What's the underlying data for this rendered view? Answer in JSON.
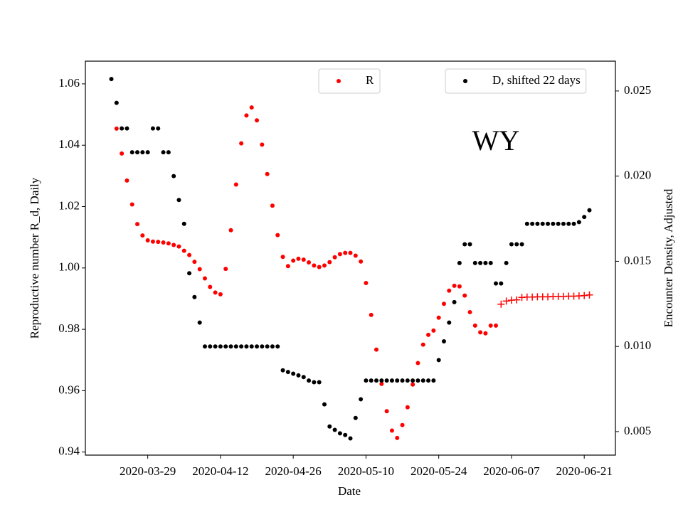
{
  "chart_data": {
    "type": "scatter",
    "x": [
      "2020-03-22",
      "2020-03-23",
      "2020-03-24",
      "2020-03-25",
      "2020-03-26",
      "2020-03-27",
      "2020-03-28",
      "2020-03-29",
      "2020-03-30",
      "2020-03-31",
      "2020-04-01",
      "2020-04-02",
      "2020-04-03",
      "2020-04-04",
      "2020-04-05",
      "2020-04-06",
      "2020-04-07",
      "2020-04-08",
      "2020-04-09",
      "2020-04-10",
      "2020-04-11",
      "2020-04-12",
      "2020-04-13",
      "2020-04-14",
      "2020-04-15",
      "2020-04-16",
      "2020-04-17",
      "2020-04-18",
      "2020-04-19",
      "2020-04-20",
      "2020-04-21",
      "2020-04-22",
      "2020-04-23",
      "2020-04-24",
      "2020-04-25",
      "2020-04-26",
      "2020-04-27",
      "2020-04-28",
      "2020-04-29",
      "2020-04-30",
      "2020-05-01",
      "2020-05-02",
      "2020-05-03",
      "2020-05-04",
      "2020-05-05",
      "2020-05-06",
      "2020-05-07",
      "2020-05-08",
      "2020-05-09",
      "2020-05-10",
      "2020-05-11",
      "2020-05-12",
      "2020-05-13",
      "2020-05-14",
      "2020-05-15",
      "2020-05-16",
      "2020-05-17",
      "2020-05-18",
      "2020-05-19",
      "2020-05-20",
      "2020-05-21",
      "2020-05-22",
      "2020-05-23",
      "2020-05-24",
      "2020-05-25",
      "2020-05-26",
      "2020-05-27",
      "2020-05-28",
      "2020-05-29",
      "2020-05-30",
      "2020-05-31",
      "2020-06-01",
      "2020-06-02",
      "2020-06-03",
      "2020-06-04",
      "2020-06-05",
      "2020-06-06",
      "2020-06-07",
      "2020-06-08",
      "2020-06-09",
      "2020-06-10",
      "2020-06-11",
      "2020-06-12",
      "2020-06-13",
      "2020-06-14",
      "2020-06-15",
      "2020-06-16",
      "2020-06-17",
      "2020-06-18",
      "2020-06-19",
      "2020-06-20",
      "2020-06-21",
      "2020-06-22"
    ],
    "series": [
      {
        "name": "R",
        "color": "#ff0000",
        "marker": "o",
        "legend": "upper center",
        "values": [
          null,
          1.0454,
          1.0373,
          1.0285,
          1.0207,
          1.0143,
          1.0106,
          1.009,
          1.0086,
          1.0085,
          1.0083,
          1.008,
          1.0075,
          1.007,
          1.0056,
          1.0042,
          1.002,
          0.9996,
          0.9966,
          0.9938,
          0.992,
          0.9914,
          0.9997,
          1.0123,
          1.0272,
          1.0406,
          1.0497,
          1.0523,
          1.0481,
          1.0402,
          1.0306,
          1.0203,
          1.0107,
          1.0036,
          1.0006,
          1.0024,
          1.003,
          1.0027,
          1.0018,
          1.0008,
          1.0003,
          1.0008,
          1.0019,
          1.0035,
          1.0045,
          1.0049,
          1.0049,
          1.004,
          1.0021,
          0.9951,
          0.9847,
          0.9734,
          0.9622,
          0.9533,
          0.947,
          0.9446,
          0.9488,
          0.9546,
          0.962,
          0.969,
          0.975,
          0.9782,
          0.9796,
          0.9838,
          0.9883,
          0.9926,
          0.9942,
          0.994,
          0.991,
          0.9856,
          0.9812,
          0.979,
          0.9787,
          0.9812,
          0.9812,
          null,
          null,
          null,
          null,
          null,
          null,
          null,
          null,
          null,
          null,
          null,
          null,
          null,
          null,
          null,
          null,
          null,
          null
        ]
      },
      {
        "color": "#ff0000",
        "marker": "+",
        "values": [
          null,
          null,
          null,
          null,
          null,
          null,
          null,
          null,
          null,
          null,
          null,
          null,
          null,
          null,
          null,
          null,
          null,
          null,
          null,
          null,
          null,
          null,
          null,
          null,
          null,
          null,
          null,
          null,
          null,
          null,
          null,
          null,
          null,
          null,
          null,
          null,
          null,
          null,
          null,
          null,
          null,
          null,
          null,
          null,
          null,
          null,
          null,
          null,
          null,
          null,
          null,
          null,
          null,
          null,
          null,
          null,
          null,
          null,
          null,
          null,
          null,
          null,
          null,
          null,
          null,
          null,
          null,
          null,
          null,
          null,
          null,
          null,
          null,
          null,
          null,
          0.9882,
          0.9892,
          0.9895,
          0.9896,
          0.9904,
          0.9905,
          0.9905,
          0.9906,
          0.9906,
          0.9906,
          0.9907,
          0.9907,
          0.9907,
          0.9908,
          0.9908,
          0.9909,
          0.991,
          0.9912
        ]
      },
      {
        "name": "D, shifted 22 days",
        "color": "#000000",
        "marker": "o",
        "axis": "y2",
        "legend": "upper right",
        "values": [
          0.0257,
          0.0243,
          0.0228,
          0.0228,
          0.0214,
          0.0214,
          0.0214,
          0.0214,
          0.0228,
          0.0228,
          0.0214,
          0.0214,
          0.02,
          0.0186,
          0.0172,
          0.0143,
          0.0129,
          0.0114,
          0.01,
          0.01,
          0.01,
          0.01,
          0.01,
          0.01,
          0.01,
          0.01,
          0.01,
          0.01,
          0.01,
          0.01,
          0.01,
          0.01,
          0.01,
          0.0086,
          0.0085,
          0.0084,
          0.0083,
          0.0082,
          0.008,
          0.0079,
          0.0079,
          0.0066,
          0.0053,
          0.0051,
          0.0049,
          0.0048,
          0.0046,
          0.0058,
          0.0069,
          0.008,
          0.008,
          0.008,
          0.008,
          0.008,
          0.008,
          0.008,
          0.008,
          0.008,
          0.008,
          0.008,
          0.008,
          0.008,
          0.008,
          0.0092,
          0.0103,
          0.0114,
          0.0126,
          0.0149,
          0.016,
          0.016,
          0.0149,
          0.0149,
          0.0149,
          0.0149,
          0.0137,
          0.0137,
          0.0149,
          0.016,
          0.016,
          0.016,
          0.0172,
          0.0172,
          0.0172,
          0.0172,
          0.0172,
          0.0172,
          0.0172,
          0.0172,
          0.0172,
          0.0172,
          0.0173,
          0.0176,
          0.018
        ]
      }
    ],
    "xlabel": "Date",
    "ylabel": "Reproductive number R_d, Daily",
    "y2label": "Encounter Density, Adjusted",
    "ylabel_color": "#ff0000",
    "annotation": "WY",
    "xlim": [
      "2020-03-17",
      "2020-06-27"
    ],
    "xticks": [
      "2020-03-29",
      "2020-04-12",
      "2020-04-26",
      "2020-05-10",
      "2020-05-24",
      "2020-06-07",
      "2020-06-21"
    ],
    "ylim": [
      0.939,
      1.0674
    ],
    "yticks": [
      0.94,
      0.96,
      0.98,
      {
        "value": 1,
        "label": "1.00"
      },
      1.02,
      1.04,
      1.06
    ],
    "y2lim": [
      0.00362,
      0.02675
    ],
    "y2ticks": [
      0.005,
      {
        "value": 0.01,
        "label": "0.010"
      },
      0.015,
      {
        "value": 0.02,
        "label": "0.020"
      },
      0.025
    ],
    "grid": false
  }
}
